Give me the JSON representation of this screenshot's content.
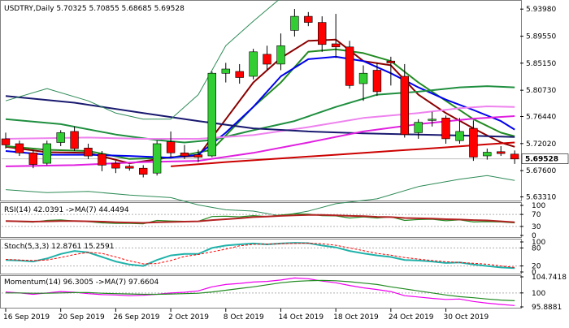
{
  "chart_data": {
    "type": "candlestick",
    "header": {
      "symbol": "USDTRY,Daily",
      "open": "5.70325",
      "high": "5.70855",
      "low": "5.68685",
      "close": "5.69528"
    },
    "price_axis": {
      "ticks": [
        "5.93980",
        "5.89550",
        "5.85150",
        "5.80730",
        "5.76440",
        "5.72020",
        "5.67600",
        "5.63310"
      ],
      "current_label": "5.69528",
      "ylim": [
        5.6285,
        5.952
      ]
    },
    "x_labels": [
      {
        "i": 0,
        "label": "16 Sep 2019"
      },
      {
        "i": 4,
        "label": "20 Sep 2019"
      },
      {
        "i": 8,
        "label": "26 Sep 2019"
      },
      {
        "i": 12,
        "label": "2 Oct 2019"
      },
      {
        "i": 16,
        "label": "8 Oct 2019"
      },
      {
        "i": 20,
        "label": "14 Oct 2019"
      },
      {
        "i": 24,
        "label": "18 Oct 2019"
      },
      {
        "i": 28,
        "label": "24 Oct 2019"
      },
      {
        "i": 32,
        "label": "30 Oct 2019"
      }
    ],
    "candles": [
      {
        "o": 5.728,
        "h": 5.738,
        "l": 5.712,
        "c": 5.718
      },
      {
        "o": 5.72,
        "h": 5.725,
        "l": 5.7,
        "c": 5.705
      },
      {
        "o": 5.705,
        "h": 5.71,
        "l": 5.68,
        "c": 5.686
      },
      {
        "o": 5.688,
        "h": 5.725,
        "l": 5.685,
        "c": 5.72
      },
      {
        "o": 5.722,
        "h": 5.742,
        "l": 5.716,
        "c": 5.738
      },
      {
        "o": 5.74,
        "h": 5.748,
        "l": 5.708,
        "c": 5.712
      },
      {
        "o": 5.713,
        "h": 5.72,
        "l": 5.695,
        "c": 5.7
      },
      {
        "o": 5.703,
        "h": 5.708,
        "l": 5.675,
        "c": 5.685
      },
      {
        "o": 5.688,
        "h": 5.692,
        "l": 5.672,
        "c": 5.68
      },
      {
        "o": 5.683,
        "h": 5.686,
        "l": 5.676,
        "c": 5.68
      },
      {
        "o": 5.68,
        "h": 5.685,
        "l": 5.665,
        "c": 5.67
      },
      {
        "o": 5.672,
        "h": 5.725,
        "l": 5.668,
        "c": 5.72
      },
      {
        "o": 5.723,
        "h": 5.74,
        "l": 5.698,
        "c": 5.705
      },
      {
        "o": 5.705,
        "h": 5.718,
        "l": 5.695,
        "c": 5.7
      },
      {
        "o": 5.702,
        "h": 5.71,
        "l": 5.69,
        "c": 5.698
      },
      {
        "o": 5.7,
        "h": 5.838,
        "l": 5.698,
        "c": 5.835
      },
      {
        "o": 5.835,
        "h": 5.852,
        "l": 5.82,
        "c": 5.842
      },
      {
        "o": 5.838,
        "h": 5.85,
        "l": 5.818,
        "c": 5.828
      },
      {
        "o": 5.83,
        "h": 5.875,
        "l": 5.825,
        "c": 5.87
      },
      {
        "o": 5.866,
        "h": 5.88,
        "l": 5.84,
        "c": 5.85
      },
      {
        "o": 5.85,
        "h": 5.9,
        "l": 5.84,
        "c": 5.88
      },
      {
        "o": 5.905,
        "h": 5.94,
        "l": 5.895,
        "c": 5.928
      },
      {
        "o": 5.928,
        "h": 5.935,
        "l": 5.912,
        "c": 5.918
      },
      {
        "o": 5.918,
        "h": 5.928,
        "l": 5.87,
        "c": 5.882
      },
      {
        "o": 5.883,
        "h": 5.932,
        "l": 5.86,
        "c": 5.878
      },
      {
        "o": 5.878,
        "h": 5.888,
        "l": 5.81,
        "c": 5.815
      },
      {
        "o": 5.818,
        "h": 5.848,
        "l": 5.79,
        "c": 5.835
      },
      {
        "o": 5.84,
        "h": 5.852,
        "l": 5.798,
        "c": 5.805
      },
      {
        "o": 5.855,
        "h": 5.862,
        "l": 5.815,
        "c": 5.852
      },
      {
        "o": 5.83,
        "h": 5.85,
        "l": 5.73,
        "c": 5.735
      },
      {
        "o": 5.738,
        "h": 5.76,
        "l": 5.728,
        "c": 5.755
      },
      {
        "o": 5.758,
        "h": 5.772,
        "l": 5.748,
        "c": 5.76
      },
      {
        "o": 5.762,
        "h": 5.766,
        "l": 5.72,
        "c": 5.728
      },
      {
        "o": 5.725,
        "h": 5.762,
        "l": 5.72,
        "c": 5.74
      },
      {
        "o": 5.745,
        "h": 5.758,
        "l": 5.692,
        "c": 5.698
      },
      {
        "o": 5.7,
        "h": 5.712,
        "l": 5.694,
        "c": 5.706
      },
      {
        "o": 5.707,
        "h": 5.716,
        "l": 5.7,
        "c": 5.704
      },
      {
        "o": 5.703,
        "h": 5.709,
        "l": 5.687,
        "c": 5.695
      }
    ],
    "overlays": [
      {
        "color": "#8b0000",
        "points": [
          [
            0,
            5.715
          ],
          [
            3,
            5.706
          ],
          [
            6,
            5.705
          ],
          [
            9,
            5.688
          ],
          [
            12,
            5.698
          ],
          [
            14,
            5.7
          ],
          [
            16,
            5.76
          ],
          [
            18,
            5.82
          ],
          [
            20,
            5.86
          ],
          [
            22,
            5.888
          ],
          [
            24,
            5.89
          ],
          [
            26,
            5.855
          ],
          [
            28,
            5.848
          ],
          [
            30,
            5.8
          ],
          [
            32,
            5.77
          ],
          [
            34,
            5.745
          ],
          [
            36,
            5.722
          ],
          [
            37,
            5.715
          ]
        ]
      },
      {
        "color": "#228b22",
        "points": [
          [
            0,
            5.716
          ],
          [
            3,
            5.71
          ],
          [
            6,
            5.708
          ],
          [
            9,
            5.695
          ],
          [
            12,
            5.697
          ],
          [
            15,
            5.71
          ],
          [
            18,
            5.78
          ],
          [
            20,
            5.82
          ],
          [
            22,
            5.87
          ],
          [
            24,
            5.874
          ],
          [
            26,
            5.868
          ],
          [
            28,
            5.855
          ],
          [
            30,
            5.82
          ],
          [
            32,
            5.79
          ],
          [
            34,
            5.76
          ],
          [
            36,
            5.738
          ],
          [
            37,
            5.732
          ]
        ]
      },
      {
        "color": "#0000ee",
        "points": [
          [
            0,
            5.708
          ],
          [
            3,
            5.702
          ],
          [
            6,
            5.702
          ],
          [
            9,
            5.7
          ],
          [
            12,
            5.697
          ],
          [
            14,
            5.702
          ],
          [
            16,
            5.738
          ],
          [
            18,
            5.78
          ],
          [
            20,
            5.83
          ],
          [
            22,
            5.858
          ],
          [
            24,
            5.862
          ],
          [
            26,
            5.855
          ],
          [
            28,
            5.835
          ],
          [
            30,
            5.812
          ],
          [
            32,
            5.792
          ],
          [
            34,
            5.775
          ],
          [
            36,
            5.757
          ],
          [
            37,
            5.743
          ]
        ]
      },
      {
        "color": "#1f8f3f",
        "points": [
          [
            0,
            5.76
          ],
          [
            4,
            5.752
          ],
          [
            8,
            5.735
          ],
          [
            11,
            5.726
          ],
          [
            13,
            5.722
          ],
          [
            15,
            5.726
          ],
          [
            18,
            5.742
          ],
          [
            21,
            5.757
          ],
          [
            24,
            5.78
          ],
          [
            27,
            5.8
          ],
          [
            30,
            5.805
          ],
          [
            33,
            5.812
          ],
          [
            35,
            5.814
          ],
          [
            37,
            5.812
          ]
        ]
      },
      {
        "color": "#ee82ee",
        "points": [
          [
            0,
            5.728
          ],
          [
            6,
            5.73
          ],
          [
            10,
            5.728
          ],
          [
            14,
            5.728
          ],
          [
            18,
            5.734
          ],
          [
            22,
            5.747
          ],
          [
            26,
            5.762
          ],
          [
            30,
            5.77
          ],
          [
            33,
            5.778
          ],
          [
            35,
            5.781
          ],
          [
            37,
            5.78
          ]
        ]
      },
      {
        "color": "#191970",
        "points": [
          [
            0,
            5.798
          ],
          [
            5,
            5.787
          ],
          [
            10,
            5.77
          ],
          [
            14,
            5.757
          ],
          [
            18,
            5.745
          ],
          [
            22,
            5.74
          ],
          [
            26,
            5.737
          ],
          [
            30,
            5.735
          ],
          [
            34,
            5.733
          ],
          [
            37,
            5.731
          ]
        ]
      },
      {
        "color": "#e020e0",
        "points": [
          [
            0,
            5.683
          ],
          [
            5,
            5.685
          ],
          [
            10,
            5.69
          ],
          [
            14,
            5.692
          ],
          [
            18,
            5.705
          ],
          [
            22,
            5.722
          ],
          [
            26,
            5.74
          ],
          [
            30,
            5.752
          ],
          [
            34,
            5.761
          ],
          [
            37,
            5.765
          ]
        ]
      },
      {
        "color": "#cc0000",
        "points": [
          [
            12,
            5.683
          ],
          [
            16,
            5.69
          ],
          [
            20,
            5.696
          ],
          [
            24,
            5.702
          ],
          [
            28,
            5.708
          ],
          [
            32,
            5.714
          ],
          [
            35,
            5.719
          ],
          [
            37,
            5.722
          ]
        ]
      },
      {
        "color": "#2e8b57",
        "points": [
          [
            0,
            5.79
          ],
          [
            3,
            5.81
          ],
          [
            6,
            5.79
          ],
          [
            8,
            5.77
          ],
          [
            10,
            5.76
          ],
          [
            12,
            5.76
          ],
          [
            14,
            5.8
          ],
          [
            16,
            5.88
          ],
          [
            18,
            5.92
          ],
          [
            20,
            5.958
          ],
          [
            22,
            5.975
          ],
          [
            24,
            5.97
          ],
          [
            27,
            5.968
          ],
          [
            30,
            5.966
          ],
          [
            33,
            5.965
          ],
          [
            37,
            5.965
          ]
        ]
      },
      {
        "color": "#2e8b57",
        "points": [
          [
            0,
            5.645
          ],
          [
            3,
            5.64
          ],
          [
            6,
            5.642
          ],
          [
            9,
            5.636
          ],
          [
            12,
            5.632
          ],
          [
            14,
            5.62
          ],
          [
            16,
            5.612
          ],
          [
            18,
            5.61
          ],
          [
            20,
            5.602
          ],
          [
            22,
            5.61
          ],
          [
            24,
            5.622
          ],
          [
            27,
            5.63
          ],
          [
            30,
            5.65
          ],
          [
            33,
            5.662
          ],
          [
            35,
            5.668
          ],
          [
            37,
            5.66
          ]
        ]
      }
    ],
    "rsi": {
      "label": "RSI(14) 42.0391  ->MA(7) 44.4494",
      "ticks": [
        "100",
        "70",
        "30",
        "0"
      ],
      "values": [
        48,
        46,
        44,
        50,
        52,
        48,
        46,
        42,
        40,
        40,
        39,
        50,
        48,
        47,
        47,
        63,
        64,
        62,
        66,
        63,
        68,
        72,
        71,
        66,
        65,
        58,
        62,
        58,
        62,
        50,
        53,
        54,
        49,
        52,
        45,
        46,
        45,
        42
      ],
      "ma": [
        48,
        47,
        46,
        47,
        48,
        48,
        47,
        46,
        44,
        43,
        42,
        44,
        45,
        46,
        47,
        51,
        54,
        57,
        61,
        63,
        65,
        67,
        68,
        68,
        67,
        65,
        64,
        62,
        61,
        58,
        57,
        56,
        54,
        53,
        51,
        50,
        47,
        44
      ]
    },
    "stoch": {
      "label": "Stoch(5,3,3) 12.8761  15.2591",
      "ticks": [
        "100",
        "80",
        "20",
        "0"
      ],
      "k": [
        40,
        38,
        35,
        45,
        60,
        70,
        65,
        50,
        35,
        25,
        20,
        40,
        55,
        60,
        60,
        80,
        88,
        92,
        95,
        92,
        95,
        97,
        96,
        88,
        82,
        70,
        62,
        55,
        50,
        40,
        38,
        35,
        30,
        32,
        25,
        20,
        15,
        12.9
      ],
      "d": [
        42,
        40,
        38,
        40,
        48,
        58,
        65,
        62,
        50,
        37,
        27,
        28,
        38,
        52,
        58,
        67,
        76,
        87,
        92,
        93,
        94,
        95,
        96,
        94,
        89,
        80,
        71,
        62,
        56,
        48,
        43,
        38,
        34,
        32,
        29,
        26,
        20,
        15.3
      ]
    },
    "mom": {
      "label": "Momentum(14) 96.3005  ->MA(7) 97.6604",
      "ticks": [
        "104.7418",
        "100",
        "95.8881"
      ],
      "values": [
        100.3,
        100.0,
        99.6,
        100.0,
        100.4,
        100.2,
        99.8,
        99.5,
        99.4,
        99.2,
        99.3,
        99.6,
        100.0,
        100.2,
        100.6,
        101.8,
        102.5,
        102.8,
        103.2,
        103.4,
        103.8,
        104.4,
        104.2,
        103.5,
        103.0,
        102.2,
        101.5,
        101.0,
        100.4,
        99.2,
        98.8,
        98.4,
        98.1,
        98.2,
        97.5,
        97.0,
        96.6,
        96.3
      ],
      "ma": [
        100.0,
        100.0,
        99.9,
        99.9,
        100.0,
        100.1,
        100.1,
        99.9,
        99.8,
        99.7,
        99.6,
        99.6,
        99.7,
        99.8,
        99.9,
        100.3,
        100.8,
        101.3,
        101.8,
        102.4,
        103.0,
        103.4,
        103.6,
        103.7,
        103.6,
        103.3,
        102.9,
        102.5,
        101.8,
        101.2,
        100.6,
        100.0,
        99.4,
        98.9,
        98.6,
        98.2,
        97.9,
        97.7
      ]
    }
  }
}
